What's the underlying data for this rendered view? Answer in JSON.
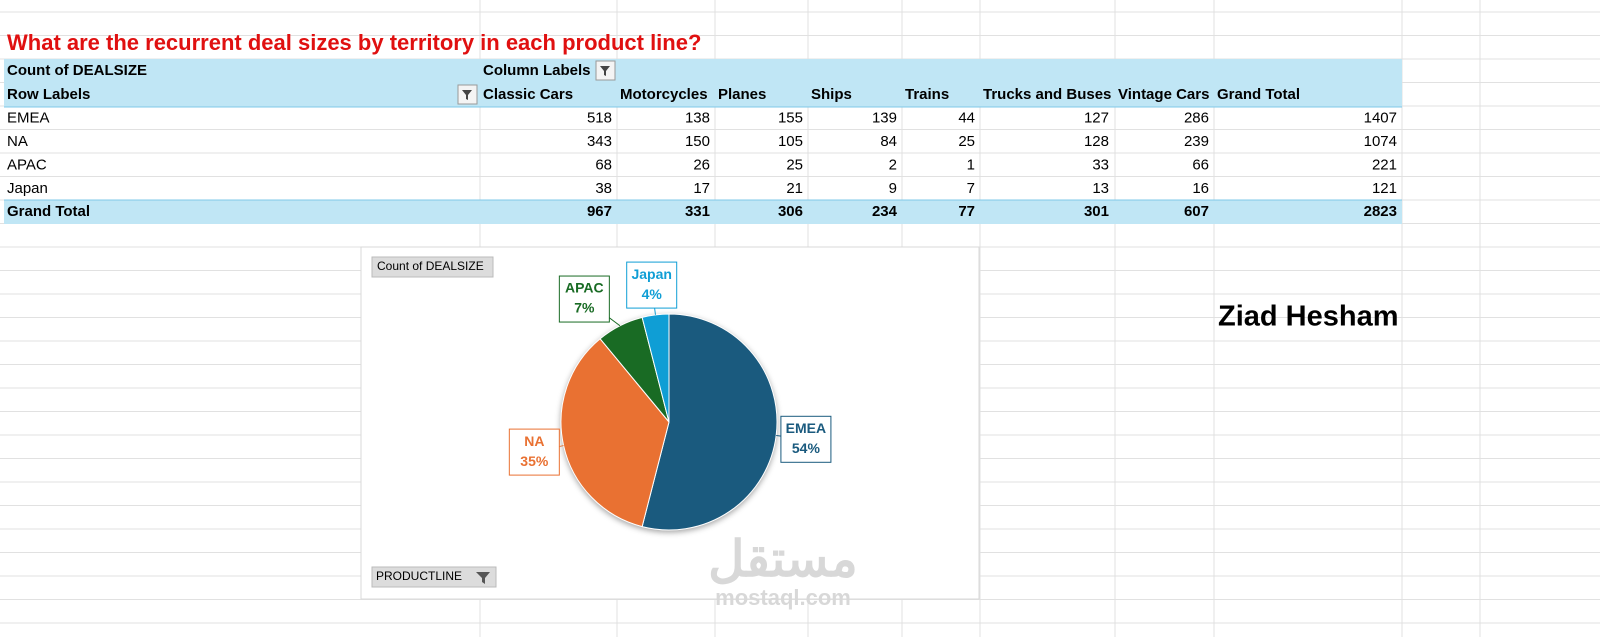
{
  "sheet_title": "What are the recurrent deal sizes by territory in each product line?",
  "table": {
    "corner": "Count of DEALSIZE",
    "column_labels": "Column Labels",
    "row_labels": "Row Labels",
    "columns": [
      "Classic Cars",
      "Motorcycles",
      "Planes",
      "Ships",
      "Trains",
      "Trucks and Buses",
      "Vintage Cars",
      "Grand Total"
    ],
    "rows": [
      {
        "label": "EMEA",
        "values": [
          518,
          138,
          155,
          139,
          44,
          127,
          286,
          1407
        ]
      },
      {
        "label": "NA",
        "values": [
          343,
          150,
          105,
          84,
          25,
          128,
          239,
          1074
        ]
      },
      {
        "label": "APAC",
        "values": [
          68,
          26,
          25,
          2,
          1,
          33,
          66,
          221
        ]
      },
      {
        "label": "Japan",
        "values": [
          38,
          17,
          21,
          9,
          7,
          13,
          16,
          121
        ]
      }
    ],
    "total": {
      "label": "Grand Total",
      "values": [
        967,
        331,
        306,
        234,
        77,
        301,
        607,
        2823
      ]
    }
  },
  "chart_data": {
    "type": "pie",
    "field_button": "Count of DEALSIZE",
    "filter_button": "PRODUCTLINE",
    "categories": [
      "EMEA",
      "NA",
      "APAC",
      "Japan"
    ],
    "values": [
      54,
      35,
      7,
      4
    ],
    "value_labels": [
      "54%",
      "35%",
      "7%",
      "4%"
    ],
    "colors": [
      "#1a5a7e",
      "#e97132",
      "#196b24",
      "#0f9ed5"
    ]
  },
  "author": "Ziad Hesham",
  "watermark": {
    "arabic": "مستقل",
    "latin": "mostaql.com"
  }
}
